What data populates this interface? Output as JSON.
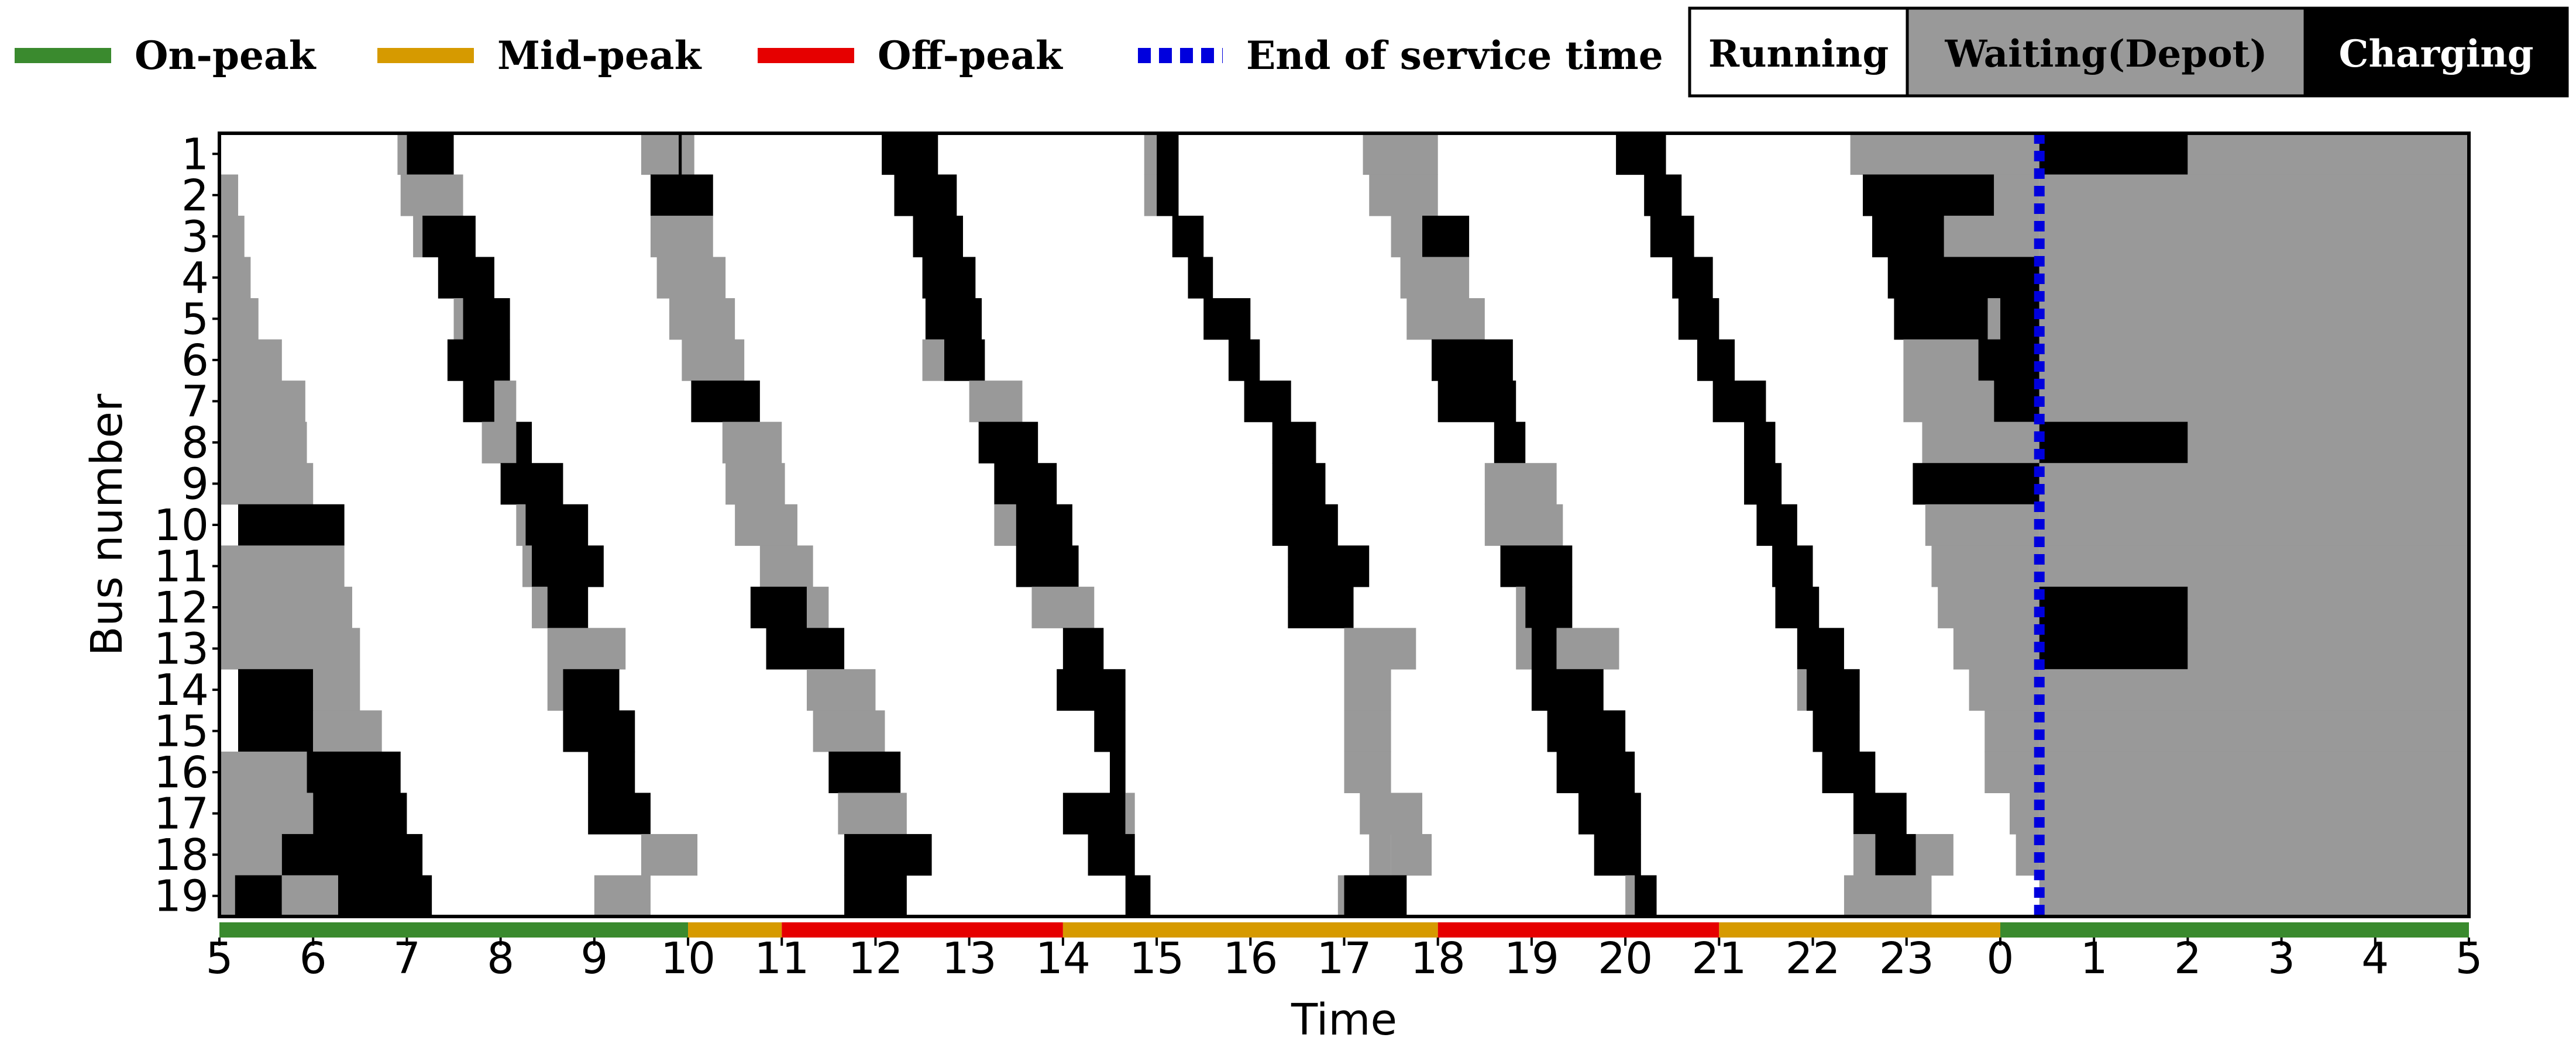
{
  "colors": {
    "running": "#ffffff",
    "waiting": "#999999",
    "charging": "#000000",
    "on_peak": "#3a8a2e",
    "mid_peak": "#d69a00",
    "off_peak": "#e60000",
    "end_service": "#0000dd"
  },
  "legend": {
    "on_peak": "On-peak",
    "mid_peak": "Mid-peak",
    "off_peak": "Off-peak",
    "end_service": "End of service time",
    "running": "Running",
    "waiting": "Waiting(Depot)",
    "charging": "Charging"
  },
  "chart_data": {
    "type": "gantt",
    "xlabel": "Time",
    "ylabel": "Bus number",
    "x_tick_labels": [
      "5",
      "6",
      "7",
      "8",
      "9",
      "10",
      "11",
      "12",
      "13",
      "14",
      "15",
      "16",
      "17",
      "18",
      "19",
      "20",
      "21",
      "22",
      "23",
      "0",
      "1",
      "2",
      "3",
      "4",
      "5"
    ],
    "buses": [
      1,
      2,
      3,
      4,
      5,
      6,
      7,
      8,
      9,
      10,
      11,
      12,
      13,
      14,
      15,
      16,
      17,
      18,
      19
    ],
    "end_of_service_time": "0:25",
    "tariff_periods": [
      {
        "period": "on_peak",
        "start": "5:00",
        "end": "10:00"
      },
      {
        "period": "mid_peak",
        "start": "10:00",
        "end": "11:00"
      },
      {
        "period": "off_peak",
        "start": "11:00",
        "end": "14:00"
      },
      {
        "period": "mid_peak",
        "start": "14:00",
        "end": "18:00"
      },
      {
        "period": "off_peak",
        "start": "18:00",
        "end": "21:00"
      },
      {
        "period": "mid_peak",
        "start": "21:00",
        "end": "0:00"
      },
      {
        "period": "on_peak",
        "start": "0:00",
        "end": "5:00"
      }
    ],
    "segments": [
      [
        [
          "waiting",
          "6:54",
          "7:00"
        ],
        [
          "charging",
          "7:00",
          "7:30"
        ],
        [
          "waiting",
          "9:30",
          "9:54"
        ],
        [
          "charging",
          "9:54",
          "9:56"
        ],
        [
          "waiting",
          "9:56",
          "10:04"
        ],
        [
          "charging",
          "12:04",
          "12:40"
        ],
        [
          "waiting",
          "14:52",
          "15:00"
        ],
        [
          "charging",
          "15:00",
          "15:14"
        ],
        [
          "waiting",
          "17:12",
          "18:00"
        ],
        [
          "charging",
          "19:54",
          "20:26"
        ],
        [
          "waiting",
          "22:24",
          "0:25"
        ],
        [
          "charging",
          "0:25",
          "2:00"
        ],
        [
          "waiting",
          "2:00",
          "5:00"
        ]
      ],
      [
        [
          "waiting",
          "5:00",
          "5:12"
        ],
        [
          "waiting",
          "6:56",
          "7:36"
        ],
        [
          "charging",
          "9:36",
          "10:16"
        ],
        [
          "charging",
          "12:12",
          "12:52"
        ],
        [
          "waiting",
          "14:52",
          "15:00"
        ],
        [
          "charging",
          "15:00",
          "15:14"
        ],
        [
          "waiting",
          "17:16",
          "18:00"
        ],
        [
          "charging",
          "20:12",
          "20:36"
        ],
        [
          "charging",
          "22:32",
          "23:56"
        ],
        [
          "waiting",
          "23:56",
          "0:25"
        ],
        [
          "waiting",
          "0:25",
          "5:00"
        ]
      ],
      [
        [
          "waiting",
          "5:00",
          "5:16"
        ],
        [
          "waiting",
          "7:04",
          "7:10"
        ],
        [
          "charging",
          "7:10",
          "7:44"
        ],
        [
          "waiting",
          "9:36",
          "10:16"
        ],
        [
          "charging",
          "12:24",
          "12:56"
        ],
        [
          "charging",
          "15:10",
          "15:30"
        ],
        [
          "waiting",
          "17:30",
          "17:50"
        ],
        [
          "charging",
          "17:50",
          "18:20"
        ],
        [
          "charging",
          "20:16",
          "20:44"
        ],
        [
          "charging",
          "22:38",
          "23:24"
        ],
        [
          "waiting",
          "23:24",
          "0:25"
        ],
        [
          "waiting",
          "0:25",
          "5:00"
        ]
      ],
      [
        [
          "waiting",
          "5:00",
          "5:20"
        ],
        [
          "charging",
          "7:20",
          "7:56"
        ],
        [
          "waiting",
          "9:40",
          "10:24"
        ],
        [
          "charging",
          "12:30",
          "13:04"
        ],
        [
          "charging",
          "15:20",
          "15:36"
        ],
        [
          "waiting",
          "17:36",
          "18:20"
        ],
        [
          "charging",
          "20:30",
          "20:56"
        ],
        [
          "charging",
          "22:48",
          "0:25"
        ],
        [
          "waiting",
          "0:25",
          "5:00"
        ]
      ],
      [
        [
          "waiting",
          "5:00",
          "5:25"
        ],
        [
          "waiting",
          "7:30",
          "7:36"
        ],
        [
          "charging",
          "7:36",
          "8:06"
        ],
        [
          "waiting",
          "9:48",
          "10:30"
        ],
        [
          "charging",
          "12:32",
          "13:08"
        ],
        [
          "charging",
          "15:30",
          "16:00"
        ],
        [
          "waiting",
          "17:40",
          "18:30"
        ],
        [
          "charging",
          "20:34",
          "21:00"
        ],
        [
          "charging",
          "22:52",
          "23:52"
        ],
        [
          "waiting",
          "23:52",
          "0:00"
        ],
        [
          "charging",
          "0:00",
          "0:25"
        ],
        [
          "waiting",
          "0:25",
          "5:00"
        ]
      ],
      [
        [
          "waiting",
          "5:00",
          "5:40"
        ],
        [
          "charging",
          "7:26",
          "8:06"
        ],
        [
          "waiting",
          "9:56",
          "10:36"
        ],
        [
          "waiting",
          "12:30",
          "12:44"
        ],
        [
          "charging",
          "12:44",
          "13:10"
        ],
        [
          "charging",
          "15:46",
          "16:06"
        ],
        [
          "charging",
          "17:56",
          "18:48"
        ],
        [
          "charging",
          "20:46",
          "21:10"
        ],
        [
          "waiting",
          "22:58",
          "23:46"
        ],
        [
          "charging",
          "23:46",
          "0:25"
        ],
        [
          "waiting",
          "0:25",
          "5:00"
        ]
      ],
      [
        [
          "waiting",
          "5:00",
          "5:55"
        ],
        [
          "charging",
          "7:36",
          "7:56"
        ],
        [
          "waiting",
          "7:56",
          "8:10"
        ],
        [
          "charging",
          "10:02",
          "10:46"
        ],
        [
          "waiting",
          "13:00",
          "13:34"
        ],
        [
          "charging",
          "15:56",
          "16:26"
        ],
        [
          "charging",
          "18:00",
          "18:50"
        ],
        [
          "charging",
          "20:56",
          "21:30"
        ],
        [
          "waiting",
          "22:58",
          "23:56"
        ],
        [
          "charging",
          "23:56",
          "0:25"
        ],
        [
          "waiting",
          "0:25",
          "5:00"
        ]
      ],
      [
        [
          "waiting",
          "5:00",
          "5:56"
        ],
        [
          "waiting",
          "7:48",
          "8:10"
        ],
        [
          "charging",
          "8:10",
          "8:20"
        ],
        [
          "waiting",
          "10:22",
          "11:00"
        ],
        [
          "charging",
          "13:06",
          "13:44"
        ],
        [
          "charging",
          "16:14",
          "16:42"
        ],
        [
          "charging",
          "18:36",
          "18:56"
        ],
        [
          "charging",
          "21:16",
          "21:36"
        ],
        [
          "waiting",
          "23:10",
          "0:25"
        ],
        [
          "charging",
          "0:25",
          "2:00"
        ],
        [
          "waiting",
          "2:00",
          "5:00"
        ]
      ],
      [
        [
          "waiting",
          "5:00",
          "6:00"
        ],
        [
          "charging",
          "8:00",
          "8:40"
        ],
        [
          "waiting",
          "10:24",
          "11:02"
        ],
        [
          "charging",
          "13:16",
          "13:56"
        ],
        [
          "charging",
          "16:14",
          "16:48"
        ],
        [
          "waiting",
          "18:30",
          "19:16"
        ],
        [
          "charging",
          "21:16",
          "21:40"
        ],
        [
          "charging",
          "23:04",
          "0:25"
        ],
        [
          "waiting",
          "0:25",
          "5:00"
        ]
      ],
      [
        [
          "charging",
          "5:12",
          "6:20"
        ],
        [
          "waiting",
          "8:10",
          "8:16"
        ],
        [
          "charging",
          "8:16",
          "8:56"
        ],
        [
          "waiting",
          "10:30",
          "11:10"
        ],
        [
          "waiting",
          "13:16",
          "13:30"
        ],
        [
          "charging",
          "13:30",
          "14:06"
        ],
        [
          "charging",
          "16:14",
          "16:56"
        ],
        [
          "waiting",
          "18:30",
          "19:20"
        ],
        [
          "charging",
          "21:24",
          "21:50"
        ],
        [
          "waiting",
          "23:12",
          "0:25"
        ],
        [
          "waiting",
          "0:25",
          "5:00"
        ]
      ],
      [
        [
          "waiting",
          "5:00",
          "6:20"
        ],
        [
          "waiting",
          "8:14",
          "8:20"
        ],
        [
          "charging",
          "8:20",
          "9:06"
        ],
        [
          "waiting",
          "10:46",
          "11:20"
        ],
        [
          "charging",
          "13:30",
          "14:10"
        ],
        [
          "charging",
          "16:24",
          "17:16"
        ],
        [
          "charging",
          "18:40",
          "19:26"
        ],
        [
          "charging",
          "21:34",
          "22:00"
        ],
        [
          "waiting",
          "23:16",
          "0:25"
        ],
        [
          "waiting",
          "0:25",
          "5:00"
        ]
      ],
      [
        [
          "waiting",
          "5:00",
          "6:25"
        ],
        [
          "waiting",
          "8:20",
          "8:30"
        ],
        [
          "charging",
          "8:30",
          "8:56"
        ],
        [
          "charging",
          "10:40",
          "11:16"
        ],
        [
          "waiting",
          "11:16",
          "11:30"
        ],
        [
          "waiting",
          "13:40",
          "14:20"
        ],
        [
          "charging",
          "16:24",
          "17:06"
        ],
        [
          "waiting",
          "18:50",
          "18:56"
        ],
        [
          "charging",
          "18:56",
          "19:26"
        ],
        [
          "charging",
          "21:36",
          "22:04"
        ],
        [
          "waiting",
          "23:20",
          "0:25"
        ],
        [
          "charging",
          "0:25",
          "2:00"
        ],
        [
          "waiting",
          "2:00",
          "5:00"
        ]
      ],
      [
        [
          "waiting",
          "5:00",
          "6:30"
        ],
        [
          "waiting",
          "8:30",
          "9:20"
        ],
        [
          "charging",
          "10:50",
          "11:40"
        ],
        [
          "charging",
          "14:00",
          "14:26"
        ],
        [
          "waiting",
          "17:00",
          "17:46"
        ],
        [
          "waiting",
          "18:50",
          "19:00"
        ],
        [
          "charging",
          "19:00",
          "19:16"
        ],
        [
          "waiting",
          "19:16",
          "19:56"
        ],
        [
          "charging",
          "21:50",
          "22:20"
        ],
        [
          "waiting",
          "23:30",
          "0:25"
        ],
        [
          "charging",
          "0:25",
          "2:00"
        ],
        [
          "waiting",
          "2:00",
          "5:00"
        ]
      ],
      [
        [
          "charging",
          "5:12",
          "6:00"
        ],
        [
          "waiting",
          "6:00",
          "6:30"
        ],
        [
          "waiting",
          "8:30",
          "8:40"
        ],
        [
          "charging",
          "8:40",
          "9:16"
        ],
        [
          "waiting",
          "11:16",
          "12:00"
        ],
        [
          "charging",
          "13:56",
          "14:40"
        ],
        [
          "waiting",
          "17:00",
          "17:30"
        ],
        [
          "charging",
          "19:00",
          "19:46"
        ],
        [
          "waiting",
          "21:50",
          "21:56"
        ],
        [
          "charging",
          "21:56",
          "22:30"
        ],
        [
          "waiting",
          "23:40",
          "0:25"
        ],
        [
          "waiting",
          "0:25",
          "5:00"
        ]
      ],
      [
        [
          "charging",
          "5:12",
          "6:00"
        ],
        [
          "waiting",
          "6:00",
          "6:44"
        ],
        [
          "charging",
          "8:40",
          "9:26"
        ],
        [
          "waiting",
          "11:20",
          "12:06"
        ],
        [
          "charging",
          "14:20",
          "14:40"
        ],
        [
          "waiting",
          "17:00",
          "17:30"
        ],
        [
          "charging",
          "19:10",
          "20:00"
        ],
        [
          "charging",
          "22:00",
          "22:30"
        ],
        [
          "waiting",
          "23:50",
          "0:25"
        ],
        [
          "waiting",
          "0:25",
          "5:00"
        ]
      ],
      [
        [
          "waiting",
          "5:00",
          "5:56"
        ],
        [
          "charging",
          "5:56",
          "6:56"
        ],
        [
          "charging",
          "8:56",
          "9:26"
        ],
        [
          "charging",
          "11:30",
          "12:16"
        ],
        [
          "charging",
          "14:30",
          "14:40"
        ],
        [
          "waiting",
          "17:00",
          "17:30"
        ],
        [
          "charging",
          "19:16",
          "20:06"
        ],
        [
          "charging",
          "22:06",
          "22:40"
        ],
        [
          "waiting",
          "23:50",
          "0:25"
        ],
        [
          "waiting",
          "0:25",
          "5:00"
        ]
      ],
      [
        [
          "waiting",
          "5:00",
          "6:00"
        ],
        [
          "charging",
          "6:00",
          "7:00"
        ],
        [
          "charging",
          "8:56",
          "9:36"
        ],
        [
          "waiting",
          "11:36",
          "12:20"
        ],
        [
          "charging",
          "14:00",
          "14:40"
        ],
        [
          "waiting",
          "14:40",
          "14:46"
        ],
        [
          "waiting",
          "17:10",
          "17:50"
        ],
        [
          "charging",
          "19:30",
          "20:10"
        ],
        [
          "charging",
          "22:26",
          "23:00"
        ],
        [
          "waiting",
          "0:06",
          "0:25"
        ],
        [
          "waiting",
          "0:25",
          "5:00"
        ]
      ],
      [
        [
          "waiting",
          "5:00",
          "5:40"
        ],
        [
          "charging",
          "5:40",
          "7:10"
        ],
        [
          "waiting",
          "9:30",
          "10:06"
        ],
        [
          "charging",
          "11:40",
          "12:36"
        ],
        [
          "charging",
          "14:16",
          "14:46"
        ],
        [
          "waiting",
          "17:16",
          "17:30"
        ],
        [
          "waiting",
          "17:30",
          "17:56"
        ],
        [
          "charging",
          "19:40",
          "20:10"
        ],
        [
          "waiting",
          "22:26",
          "22:40"
        ],
        [
          "charging",
          "22:40",
          "23:06"
        ],
        [
          "waiting",
          "23:06",
          "23:30"
        ],
        [
          "waiting",
          "0:10",
          "0:25"
        ],
        [
          "waiting",
          "0:25",
          "5:00"
        ]
      ],
      [
        [
          "waiting",
          "5:00",
          "5:10"
        ],
        [
          "charging",
          "5:10",
          "5:40"
        ],
        [
          "waiting",
          "5:40",
          "6:16"
        ],
        [
          "charging",
          "6:16",
          "7:16"
        ],
        [
          "waiting",
          "9:00",
          "9:36"
        ],
        [
          "charging",
          "11:40",
          "12:20"
        ],
        [
          "charging",
          "14:40",
          "14:56"
        ],
        [
          "waiting",
          "16:56",
          "17:00"
        ],
        [
          "charging",
          "17:00",
          "17:40"
        ],
        [
          "waiting",
          "20:00",
          "20:06"
        ],
        [
          "charging",
          "20:06",
          "20:20"
        ],
        [
          "waiting",
          "22:20",
          "23:16"
        ],
        [
          "waiting",
          "0:25",
          "5:00"
        ]
      ]
    ]
  }
}
